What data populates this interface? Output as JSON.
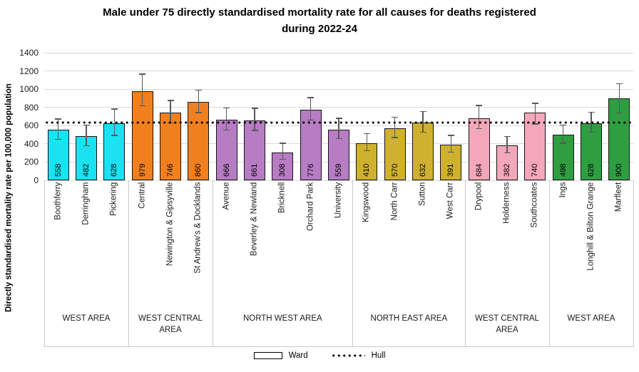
{
  "title_line1": "Male under 75 directly standardised mortality rate for all causes for deaths registered",
  "title_line2": "during 2022-24",
  "legend": {
    "ward": "Ward",
    "hull": "Hull"
  },
  "chart_data": {
    "type": "bar",
    "title": "Male under 75 directly standardised mortality rate for all causes for deaths registered during 2022-24",
    "ylabel": "Directly standardised mortality rate per 100,000 population",
    "xlabel": "",
    "ylim": [
      0,
      1400
    ],
    "y_ticks": [
      0,
      200,
      400,
      600,
      800,
      1000,
      1200,
      1400
    ],
    "grid": true,
    "legend_position": "bottom",
    "hull_reference_value": 632,
    "bar_border_color": "#141414",
    "error_bar_color": "#595959",
    "groups": [
      {
        "area_label": "WEST AREA",
        "color": "#1be2f2",
        "wards": [
          {
            "name": "Boothferry",
            "value": 558,
            "ci_low": 445,
            "ci_high": 680
          },
          {
            "name": "Derringham",
            "value": 482,
            "ci_low": 375,
            "ci_high": 612
          },
          {
            "name": "Pickering",
            "value": 628,
            "ci_low": 488,
            "ci_high": 790
          }
        ]
      },
      {
        "area_label": "WEST CENTRAL AREA",
        "color": "#f0801e",
        "wards": [
          {
            "name": "Central",
            "value": 979,
            "ci_low": 810,
            "ci_high": 1170
          },
          {
            "name": "Newington & Gipsyville",
            "value": 746,
            "ci_low": 625,
            "ci_high": 882
          },
          {
            "name": "St Andrew's & Docklands",
            "value": 860,
            "ci_low": 738,
            "ci_high": 995
          }
        ]
      },
      {
        "area_label": "NORTH WEST AREA",
        "color": "#b77cc4",
        "wards": [
          {
            "name": "Avenue",
            "value": 666,
            "ci_low": 545,
            "ci_high": 800
          },
          {
            "name": "Beverley & Newland",
            "value": 661,
            "ci_low": 540,
            "ci_high": 795
          },
          {
            "name": "Bricknell",
            "value": 308,
            "ci_low": 225,
            "ci_high": 412
          },
          {
            "name": "Orchard Park",
            "value": 776,
            "ci_low": 655,
            "ci_high": 912
          },
          {
            "name": "University",
            "value": 559,
            "ci_low": 452,
            "ci_high": 685
          }
        ]
      },
      {
        "area_label": "NORTH EAST AREA",
        "color": "#cfb12f",
        "wards": [
          {
            "name": "Kingswood",
            "value": 410,
            "ci_low": 318,
            "ci_high": 520
          },
          {
            "name": "North Carr",
            "value": 570,
            "ci_low": 462,
            "ci_high": 698
          },
          {
            "name": "Sutton",
            "value": 632,
            "ci_low": 522,
            "ci_high": 762
          },
          {
            "name": "West Carr",
            "value": 391,
            "ci_low": 302,
            "ci_high": 498
          }
        ]
      },
      {
        "area_label": "WEST CENTRAL AREA",
        "color": "#f4a7bb",
        "wards": [
          {
            "name": "Drypool",
            "value": 684,
            "ci_low": 562,
            "ci_high": 828
          },
          {
            "name": "Holderness",
            "value": 382,
            "ci_low": 295,
            "ci_high": 488
          },
          {
            "name": "Southcoates",
            "value": 740,
            "ci_low": 612,
            "ci_high": 852
          }
        ]
      },
      {
        "area_label": "WEST AREA",
        "color": "#2f9e41",
        "wards": [
          {
            "name": "Ings",
            "value": 498,
            "ci_low": 402,
            "ci_high": 612
          },
          {
            "name": "Longhill & Bilton Grange",
            "value": 628,
            "ci_low": 522,
            "ci_high": 752
          },
          {
            "name": "Marfleet",
            "value": 900,
            "ci_low": 735,
            "ci_high": 1065
          }
        ]
      }
    ]
  }
}
